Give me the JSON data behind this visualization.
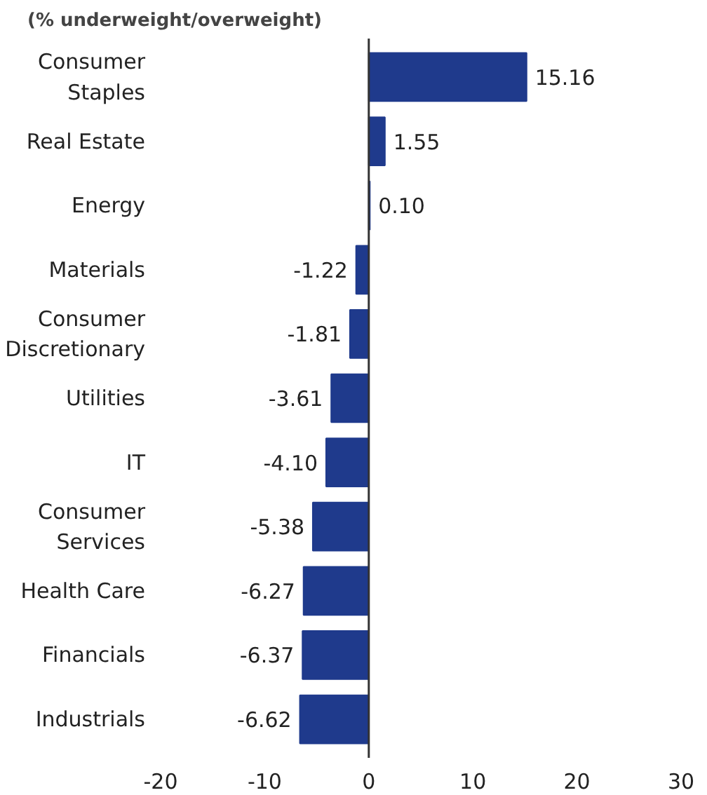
{
  "chart_data": {
    "type": "bar",
    "orientation": "horizontal",
    "title": "(% underweight/overweight)",
    "categories": [
      "Consumer Staples",
      "Real Estate",
      "Energy",
      "Materials",
      "Consumer Discretionary",
      "Utilities",
      "IT",
      "Consumer Services",
      "Health Care",
      "Financials",
      "Industrials"
    ],
    "values": [
      15.16,
      1.55,
      0.1,
      -1.22,
      -1.81,
      -3.61,
      -4.1,
      -5.38,
      -6.27,
      -6.37,
      -6.62
    ],
    "value_labels": [
      "15.16",
      "1.55",
      "0.10",
      "-1.22",
      "-1.81",
      "-3.61",
      "-4.10",
      "-5.38",
      "-6.27",
      "-6.37",
      "-6.62"
    ],
    "color": "#1f3a8c",
    "xlim": [
      -20,
      30
    ],
    "xticks": [
      -20,
      -10,
      0,
      10,
      20,
      30
    ],
    "ref_lines": [
      {
        "axis": "x",
        "value": 0,
        "color": "#333333"
      }
    ],
    "grid": false
  }
}
